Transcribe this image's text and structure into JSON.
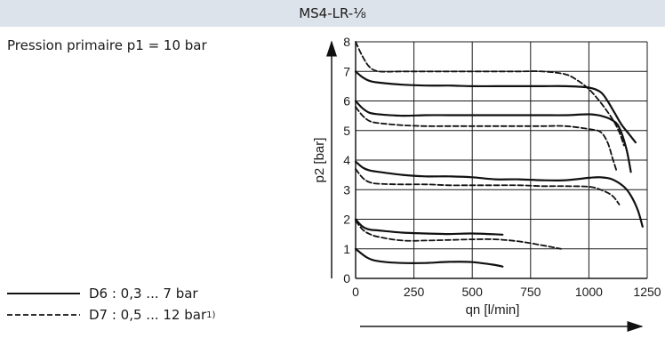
{
  "header": {
    "title": "MS4-LR-⅛"
  },
  "condition": {
    "text": "Pression primaire p1 = 10 bar"
  },
  "legend": {
    "solid_label": "D6 : 0,3 ... 7 bar",
    "dashed_label": "D7 : 0,5 ... 12 bar",
    "dashed_footnote": "1)"
  },
  "chart_data": {
    "type": "line",
    "title": "",
    "xlabel": "qn [l/min]",
    "ylabel": "p2 [bar]",
    "xlim": [
      0,
      1250
    ],
    "ylim": [
      0,
      8
    ],
    "xticks": [
      0,
      250,
      500,
      750,
      1000,
      1250
    ],
    "yticks": [
      0,
      1,
      2,
      3,
      4,
      5,
      6,
      7,
      8
    ],
    "grid": true,
    "series": [
      {
        "style": "solid",
        "x": [
          0,
          50,
          100,
          200,
          300,
          400,
          500,
          600,
          630
        ],
        "y": [
          1.0,
          0.7,
          0.58,
          0.52,
          0.52,
          0.56,
          0.55,
          0.45,
          0.4
        ]
      },
      {
        "style": "dashed",
        "x": [
          0,
          30,
          60,
          100,
          200,
          300,
          400,
          500,
          600,
          700,
          800,
          880
        ],
        "y": [
          1.95,
          1.65,
          1.5,
          1.4,
          1.28,
          1.28,
          1.3,
          1.32,
          1.32,
          1.25,
          1.12,
          1.0
        ]
      },
      {
        "style": "solid",
        "x": [
          0,
          30,
          60,
          100,
          200,
          300,
          400,
          500,
          630
        ],
        "y": [
          2.0,
          1.75,
          1.65,
          1.62,
          1.55,
          1.52,
          1.5,
          1.52,
          1.48
        ]
      },
      {
        "style": "dashed",
        "x": [
          0,
          30,
          60,
          100,
          200,
          300,
          400,
          500,
          600,
          700,
          800,
          900,
          1000,
          1050,
          1100,
          1130
        ],
        "y": [
          3.7,
          3.4,
          3.25,
          3.2,
          3.18,
          3.18,
          3.15,
          3.15,
          3.15,
          3.15,
          3.12,
          3.12,
          3.1,
          3.0,
          2.8,
          2.5
        ]
      },
      {
        "style": "solid",
        "x": [
          0,
          30,
          60,
          100,
          200,
          300,
          400,
          500,
          600,
          700,
          800,
          900,
          1000,
          1050,
          1100,
          1150,
          1180,
          1210,
          1230
        ],
        "y": [
          3.95,
          3.75,
          3.65,
          3.6,
          3.5,
          3.45,
          3.45,
          3.42,
          3.35,
          3.35,
          3.32,
          3.32,
          3.4,
          3.42,
          3.35,
          3.1,
          2.8,
          2.3,
          1.75
        ]
      },
      {
        "style": "dashed",
        "x": [
          0,
          30,
          60,
          100,
          200,
          300,
          400,
          500,
          600,
          700,
          800,
          900,
          1000,
          1050,
          1080,
          1100,
          1120
        ],
        "y": [
          5.8,
          5.5,
          5.32,
          5.25,
          5.18,
          5.15,
          5.15,
          5.15,
          5.15,
          5.15,
          5.15,
          5.15,
          5.05,
          4.95,
          4.6,
          4.1,
          3.6
        ]
      },
      {
        "style": "solid",
        "x": [
          0,
          30,
          60,
          100,
          200,
          300,
          400,
          500,
          600,
          700,
          800,
          900,
          1000,
          1050,
          1100,
          1130,
          1160,
          1180
        ],
        "y": [
          6.0,
          5.75,
          5.6,
          5.55,
          5.5,
          5.52,
          5.52,
          5.52,
          5.52,
          5.52,
          5.52,
          5.52,
          5.55,
          5.5,
          5.35,
          5.1,
          4.4,
          3.6
        ]
      },
      {
        "style": "solid",
        "x": [
          0,
          30,
          60,
          100,
          200,
          300,
          400,
          500,
          600,
          700,
          800,
          900,
          1000,
          1050,
          1080,
          1110,
          1140,
          1170,
          1200
        ],
        "y": [
          7.0,
          6.8,
          6.68,
          6.62,
          6.55,
          6.52,
          6.52,
          6.5,
          6.5,
          6.5,
          6.5,
          6.5,
          6.45,
          6.3,
          6.0,
          5.6,
          5.2,
          4.9,
          4.6
        ]
      },
      {
        "style": "dashed",
        "x": [
          0,
          30,
          60,
          100,
          200,
          300,
          400,
          500,
          600,
          700,
          800,
          900,
          950,
          1000,
          1050,
          1100,
          1130,
          1150
        ],
        "y": [
          8.0,
          7.5,
          7.15,
          7.0,
          7.0,
          7.0,
          7.0,
          7.0,
          7.0,
          7.0,
          7.0,
          6.9,
          6.7,
          6.4,
          5.95,
          5.4,
          4.95,
          4.5
        ]
      }
    ]
  }
}
